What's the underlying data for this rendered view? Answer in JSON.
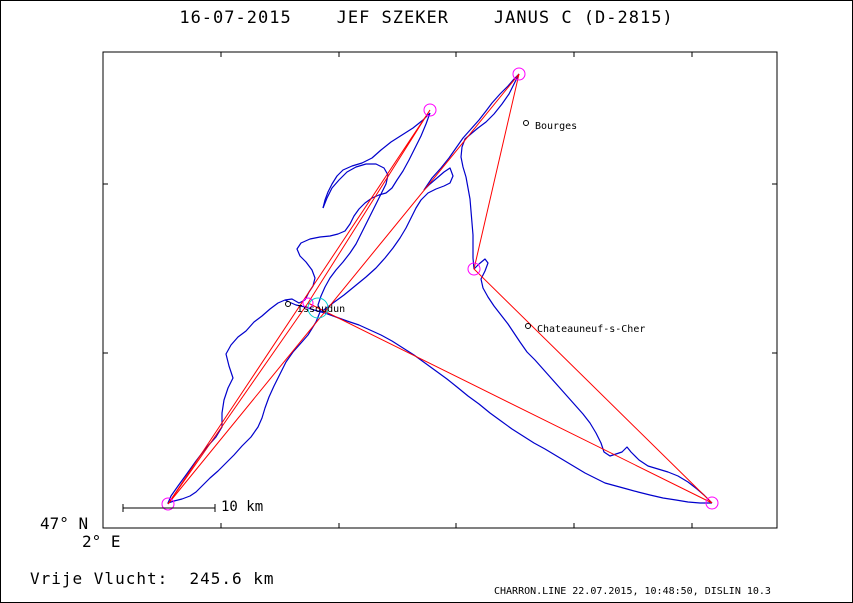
{
  "title": "16-07-2015    JEF SZEKER    JANUS C (D-2815)",
  "axes": {
    "lat_label": "47° N",
    "lon_label": "2° E"
  },
  "scale_bar": {
    "label": "10 km"
  },
  "distance": "Vrije Vlucht:  245.6 km",
  "footer": "CHARRON.LINE 22.07.2015, 10:48:50, DISLIN 10.3",
  "cities": [
    {
      "name": "Bourges"
    },
    {
      "name": "Chateauneuf-s-Cher"
    },
    {
      "name": "Issoudun"
    }
  ],
  "colors": {
    "track": "#0000cc",
    "task_line": "#ff0000",
    "turnpoint": "#ff00ff",
    "start": "#00cccc"
  }
}
